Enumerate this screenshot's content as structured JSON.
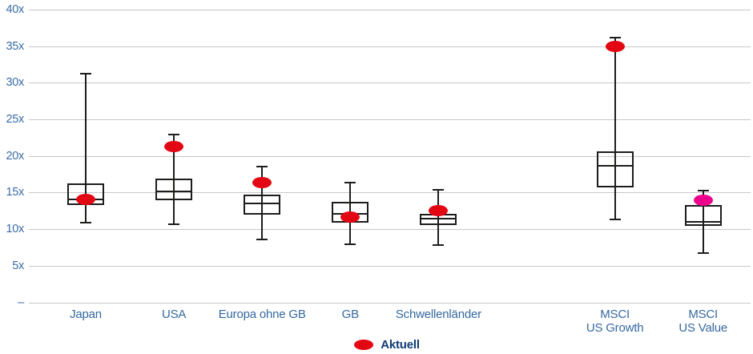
{
  "chart_data": {
    "type": "boxplot",
    "title": "",
    "unit_suffix": "x",
    "y_axis": {
      "min": 0,
      "max": 40,
      "ticks": [
        {
          "value": 40,
          "label": "40x"
        },
        {
          "value": 35,
          "label": "35x"
        },
        {
          "value": 30,
          "label": "30x"
        },
        {
          "value": 25,
          "label": "25x"
        },
        {
          "value": 20,
          "label": "20x"
        },
        {
          "value": 15,
          "label": "15x"
        },
        {
          "value": 10,
          "label": "10x"
        },
        {
          "value": 5,
          "label": "5x"
        },
        {
          "value": 0,
          "label": "–"
        }
      ],
      "grid": true
    },
    "legend": {
      "label": "Aktuell",
      "marker": "ellipse",
      "position": "bottom-center"
    },
    "layout_hints": {
      "total_slots": 8,
      "gap_slot": 5
    },
    "categories": [
      {
        "id": "japan",
        "label": [
          "Japan"
        ],
        "slot": 0,
        "low": 10.9,
        "q1": 13.3,
        "median": 14.1,
        "q3": 16.2,
        "high": 31.2,
        "current": 14.1,
        "marker_color": "#e30613"
      },
      {
        "id": "usa",
        "label": [
          "USA"
        ],
        "slot": 1,
        "low": 10.7,
        "q1": 14.0,
        "median": 15.2,
        "q3": 16.9,
        "high": 22.9,
        "current": 21.3,
        "marker_color": "#e30613"
      },
      {
        "id": "europa-ohne-gb",
        "label": [
          "Europa ohne GB"
        ],
        "slot": 2,
        "low": 8.6,
        "q1": 12.0,
        "median": 13.5,
        "q3": 14.7,
        "high": 18.6,
        "current": 16.4,
        "marker_color": "#e30613"
      },
      {
        "id": "gb",
        "label": [
          "GB"
        ],
        "slot": 3,
        "low": 7.9,
        "q1": 10.9,
        "median": 12.1,
        "q3": 13.7,
        "high": 16.4,
        "current": 11.7,
        "marker_color": "#e30613"
      },
      {
        "id": "schwellenlaender",
        "label": [
          "Schwellenländer"
        ],
        "slot": 4,
        "low": 7.8,
        "q1": 10.6,
        "median": 11.4,
        "q3": 12.1,
        "high": 15.4,
        "current": 12.5,
        "marker_color": "#e30613"
      },
      {
        "id": "msci-us-growth",
        "label": [
          "MSCI",
          "US Growth"
        ],
        "slot": 6,
        "low": 11.3,
        "q1": 15.7,
        "median": 18.7,
        "q3": 20.6,
        "high": 36.2,
        "current": 34.9,
        "marker_color": "#e30613"
      },
      {
        "id": "msci-us-value",
        "label": [
          "MSCI",
          "US Value"
        ],
        "slot": 7,
        "low": 6.7,
        "q1": 10.5,
        "median": 11.0,
        "q3": 13.3,
        "high": 15.3,
        "current": 14.0,
        "marker_color": "#ec008c"
      }
    ],
    "colors": {
      "marker_red": "#e30613",
      "marker_pink": "#ec008c",
      "box_border": "#1d1d1b",
      "whisker": "#1d1d1b",
      "gridline": "#c7c7c7",
      "axis_text": "#3a6ca6",
      "category_text": "#35699f",
      "legend_text": "#0f3d75",
      "background": "#ffffff"
    }
  }
}
